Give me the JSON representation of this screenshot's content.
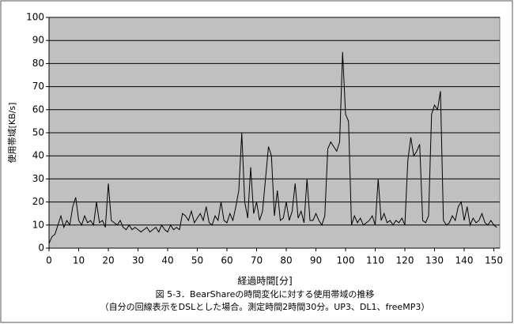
{
  "chart_data": {
    "type": "line",
    "title": "図 5-3．BearShareの時間変化に対する使用帯域の推移",
    "subtitle": "（自分の回線表示をDSLとした場合。測定時間2時間30分。UP3、DL1、freeMP3）",
    "x_label": "経過時間[分]",
    "y_label": "使用帯域[KB/s]",
    "x": [
      0,
      1,
      2,
      3,
      4,
      5,
      6,
      7,
      8,
      9,
      10,
      11,
      12,
      13,
      14,
      15,
      16,
      17,
      18,
      19,
      20,
      21,
      22,
      23,
      24,
      25,
      26,
      27,
      28,
      29,
      30,
      31,
      32,
      33,
      34,
      35,
      36,
      37,
      38,
      39,
      40,
      41,
      42,
      43,
      44,
      45,
      46,
      47,
      48,
      49,
      50,
      51,
      52,
      53,
      54,
      55,
      56,
      57,
      58,
      59,
      60,
      61,
      62,
      63,
      64,
      65,
      66,
      67,
      68,
      69,
      70,
      71,
      72,
      73,
      74,
      75,
      76,
      77,
      78,
      79,
      80,
      81,
      82,
      83,
      84,
      85,
      86,
      87,
      88,
      89,
      90,
      91,
      92,
      93,
      94,
      95,
      96,
      97,
      98,
      99,
      100,
      101,
      102,
      103,
      104,
      105,
      106,
      107,
      108,
      109,
      110,
      111,
      112,
      113,
      114,
      115,
      116,
      117,
      118,
      119,
      120,
      121,
      122,
      123,
      124,
      125,
      126,
      127,
      128,
      129,
      130,
      131,
      132,
      133,
      134,
      135,
      136,
      137,
      138,
      139,
      140,
      141,
      142,
      143,
      144,
      145,
      146,
      147,
      148,
      149,
      150,
      151
    ],
    "series": [
      {
        "name": "使用帯域",
        "color": "#000000",
        "values": [
          2,
          5,
          6,
          10,
          14,
          9,
          12,
          10,
          18,
          22,
          12,
          10,
          14,
          11,
          12,
          10,
          20,
          11,
          12,
          9,
          28,
          12,
          11,
          10,
          12,
          9,
          8,
          10,
          8,
          9,
          8,
          7,
          8,
          9,
          7,
          8,
          9,
          7,
          10,
          8,
          7,
          10,
          8,
          9,
          8,
          15,
          14,
          12,
          16,
          11,
          13,
          15,
          12,
          18,
          11,
          10,
          14,
          12,
          20,
          12,
          11,
          15,
          12,
          18,
          25,
          50,
          20,
          13,
          35,
          15,
          20,
          12,
          16,
          30,
          44,
          40,
          14,
          25,
          12,
          13,
          20,
          12,
          16,
          28,
          13,
          16,
          11,
          30,
          12,
          12,
          15,
          12,
          10,
          14,
          43,
          46,
          44,
          42,
          46,
          85,
          58,
          55,
          10,
          14,
          11,
          13,
          10,
          11,
          12,
          14,
          10,
          30,
          12,
          15,
          11,
          12,
          10,
          12,
          11,
          13,
          10,
          38,
          48,
          40,
          42,
          45,
          12,
          11,
          14,
          58,
          62,
          60,
          68,
          12,
          10,
          11,
          14,
          12,
          18,
          20,
          12,
          18,
          10,
          13,
          11,
          12,
          15,
          11,
          10,
          12,
          10,
          9
        ]
      }
    ],
    "xlim": [
      0,
      152
    ],
    "ylim": [
      0,
      100
    ],
    "xticks": [
      0,
      10,
      20,
      30,
      40,
      50,
      60,
      70,
      80,
      90,
      100,
      110,
      120,
      130,
      140,
      150
    ],
    "yticks": [
      0,
      10,
      20,
      30,
      40,
      50,
      60,
      70,
      80,
      90,
      100
    ],
    "grid": true,
    "background": "#c0c0c0"
  }
}
